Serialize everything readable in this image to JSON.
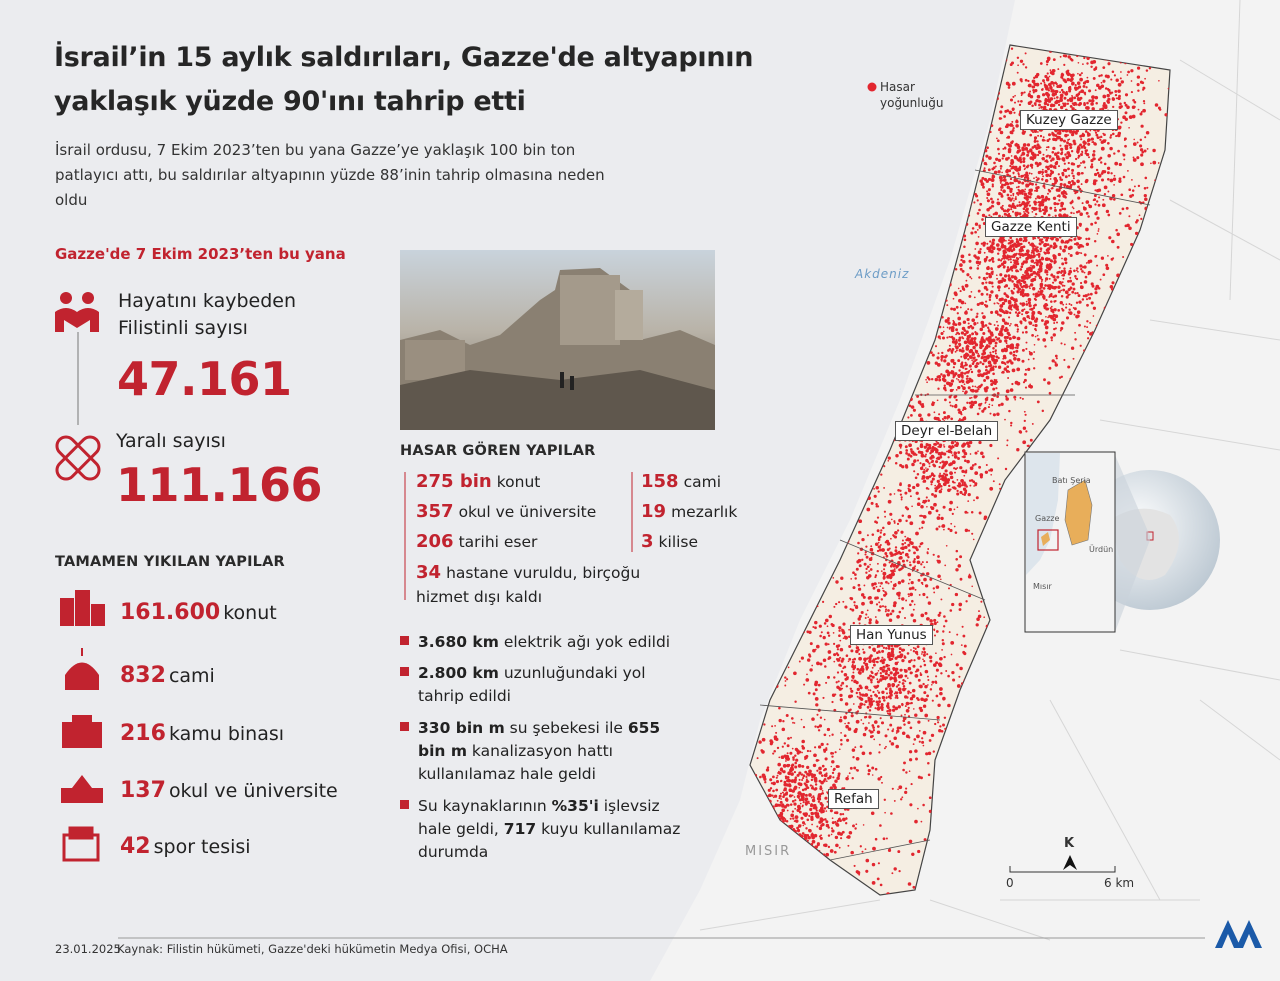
{
  "header": {
    "title_lines": [
      "İsrail’in 15 aylık saldırıları, Gazze'de altyapının",
      "yaklaşık yüzde 90'ını tahrip etti"
    ],
    "subtitle": "İsrail ordusu, 7 Ekim 2023’ten bu yana Gazze’ye yaklaşık 100 bin ton patlayıcı attı, bu saldırılar altyapının yüzde 88’inin tahrip olmasına neden oldu"
  },
  "casualties": {
    "heading": "Gazze'de 7 Ekim 2023’ten bu yana",
    "killed": {
      "label_lines": [
        "Hayatını kaybeden",
        "Filistinli sayısı"
      ],
      "value": "47.161"
    },
    "injured": {
      "label": "Yaralı sayısı",
      "value": "111.166"
    }
  },
  "destroyed": {
    "heading": "TAMAMEN YIKILAN YAPILAR",
    "items": [
      {
        "number": "161.600",
        "label": "konut"
      },
      {
        "number": "832",
        "label": "cami"
      },
      {
        "number": "216",
        "label": "kamu binası"
      },
      {
        "number": "137",
        "label": "okul ve üniversite"
      },
      {
        "number": "42",
        "label": "spor tesisi"
      }
    ]
  },
  "damaged": {
    "heading": "HASAR GÖREN YAPILAR",
    "items": [
      {
        "number": "275 bin",
        "label": "konut"
      },
      {
        "number": "357",
        "label": "okul ve üniversite"
      },
      {
        "number": "206",
        "label": "tarihi eser"
      },
      {
        "number": "158",
        "label": "cami"
      },
      {
        "number": "19",
        "label": "mezarlık"
      },
      {
        "number": "3",
        "label": "kilise"
      },
      {
        "number": "34",
        "label": "hastane vuruldu, birçoğu hizmet dışı kaldı"
      }
    ]
  },
  "infrastructure": {
    "items": [
      [
        {
          "text": "3.680 km",
          "bold": true
        },
        {
          "text": " elektrik ağı yok edildi",
          "bold": false
        }
      ],
      [
        {
          "text": "2.800 km",
          "bold": true
        },
        {
          "text": " uzunluğundaki yol tahrip edildi",
          "bold": false
        }
      ],
      [
        {
          "text": "330 bin m",
          "bold": true
        },
        {
          "text": " su şebekesi ile ",
          "bold": false
        },
        {
          "text": "655 bin m",
          "bold": true
        },
        {
          "text": " kanalizasyon hattı kullanılamaz hale geldi",
          "bold": false
        }
      ],
      [
        {
          "text": "Su kaynaklarının ",
          "bold": false
        },
        {
          "text": "%35'i",
          "bold": true
        },
        {
          "text": " işlevsiz hale geldi, ",
          "bold": false
        },
        {
          "text": "717",
          "bold": true
        },
        {
          "text": " kuyu kullanılamaz durumda",
          "bold": false
        }
      ]
    ]
  },
  "map": {
    "legend_lines": [
      "Hasar",
      "yoğunluğu"
    ],
    "cities": [
      "Kuzey Gazze",
      "Gazze Kenti",
      "Deyr el-Belah",
      "Han Yunus",
      "Refah"
    ],
    "sea": "Akdeniz",
    "country": "MISIR",
    "inset": [
      "Batı Şeria",
      "Gazze",
      "Ürdün",
      "Mısır"
    ],
    "north": "K",
    "scale": [
      "0",
      "6 km"
    ]
  },
  "footer": {
    "date": "23.01.2025",
    "source": "Kaynak: Filistin hükümeti, Gazze'deki hükümetin Medya Ofisi, OCHA"
  }
}
